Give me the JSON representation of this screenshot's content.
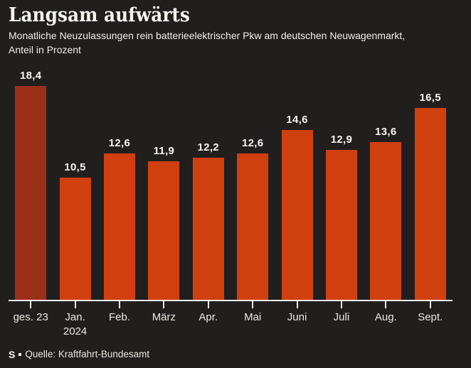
{
  "title": "Langsam aufwärts",
  "subtitle_line1": "Monatliche Neuzulassungen rein batterieelektrischer Pkw am deutschen Neuwagenmarkt,",
  "subtitle_line2": "Anteil in Prozent",
  "source": {
    "logo": "S",
    "text": "Quelle: Kraftfahrt-Bundesamt"
  },
  "colors": {
    "background": "#211e1e",
    "bar": "#d0400f",
    "bar_highlight": "#9b3018",
    "axis": "#f5f2ef",
    "text": "#f7f4f0"
  },
  "chart_data": {
    "type": "bar",
    "title": "Langsam aufwärts",
    "subtitle": "Monatliche Neuzulassungen rein batterieelektrischer Pkw am deutschen Neuwagenmarkt, Anteil in Prozent",
    "categories": [
      "ges. 23",
      "Jan.",
      "Feb.",
      "März",
      "Apr.",
      "Mai",
      "Juni",
      "Juli",
      "Aug.",
      "Sept."
    ],
    "category_sublabels": [
      "",
      "2024",
      "",
      "",
      "",
      "",
      "",
      "",
      "",
      ""
    ],
    "values": [
      18.4,
      10.5,
      12.6,
      11.9,
      12.2,
      12.6,
      14.6,
      12.9,
      13.6,
      16.5
    ],
    "value_labels": [
      "18,4",
      "10,5",
      "12,6",
      "11,9",
      "12,2",
      "12,6",
      "14,6",
      "12,9",
      "13,6",
      "16,5"
    ],
    "unit": "Prozent",
    "xlabel": "",
    "ylabel": "Anteil in Prozent",
    "ylim": [
      0,
      18.4
    ],
    "grid": false,
    "legend": false,
    "value_labels_position": "above-bars",
    "highlight_index": 0,
    "highlight_color": "#9b3018",
    "bar_color": "#d0400f",
    "source": "Quelle: Kraftfahrt-Bundesamt"
  }
}
